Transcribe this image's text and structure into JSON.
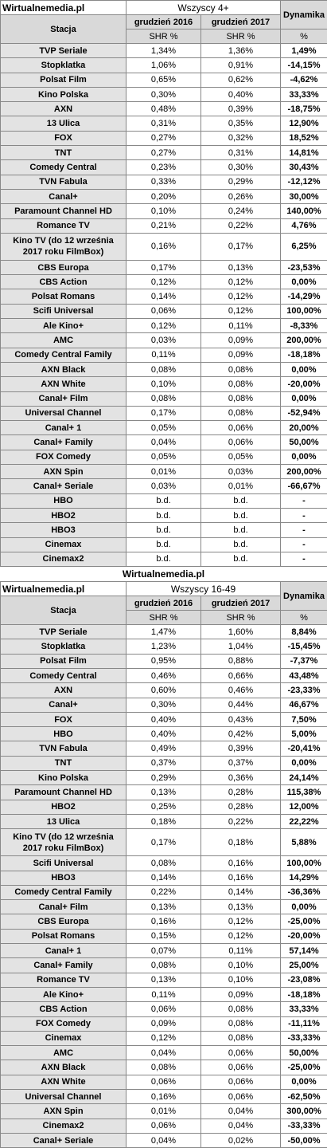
{
  "section1": {
    "site": "Wirtualnemedia.pl",
    "group": "Wszyscy 4+",
    "dynamics_label": "Dynamika",
    "station_label": "Stacja",
    "month1": "grudzień 2016",
    "month2": "grudzień 2017",
    "unit1": "SHR %",
    "unit2": "SHR %",
    "unit3": "%",
    "rows": [
      {
        "station": "TVP Seriale",
        "v2016": "1,34%",
        "v2017": "1,36%",
        "dyn": "1,49%"
      },
      {
        "station": "Stopklatka",
        "v2016": "1,06%",
        "v2017": "0,91%",
        "dyn": "-14,15%"
      },
      {
        "station": "Polsat Film",
        "v2016": "0,65%",
        "v2017": "0,62%",
        "dyn": "-4,62%"
      },
      {
        "station": "Kino Polska",
        "v2016": "0,30%",
        "v2017": "0,40%",
        "dyn": "33,33%"
      },
      {
        "station": "AXN",
        "v2016": "0,48%",
        "v2017": "0,39%",
        "dyn": "-18,75%"
      },
      {
        "station": "13 Ulica",
        "v2016": "0,31%",
        "v2017": "0,35%",
        "dyn": "12,90%"
      },
      {
        "station": "FOX",
        "v2016": "0,27%",
        "v2017": "0,32%",
        "dyn": "18,52%"
      },
      {
        "station": "TNT",
        "v2016": "0,27%",
        "v2017": "0,31%",
        "dyn": "14,81%"
      },
      {
        "station": "Comedy Central",
        "v2016": "0,23%",
        "v2017": "0,30%",
        "dyn": "30,43%"
      },
      {
        "station": "TVN Fabula",
        "v2016": "0,33%",
        "v2017": "0,29%",
        "dyn": "-12,12%"
      },
      {
        "station": "Canal+",
        "v2016": "0,20%",
        "v2017": "0,26%",
        "dyn": "30,00%"
      },
      {
        "station": "Paramount Channel HD",
        "v2016": "0,10%",
        "v2017": "0,24%",
        "dyn": "140,00%"
      },
      {
        "station": "Romance TV",
        "v2016": "0,21%",
        "v2017": "0,22%",
        "dyn": "4,76%"
      },
      {
        "station": "Kino TV (do 12 września 2017 roku FilmBox)",
        "v2016": "0,16%",
        "v2017": "0,17%",
        "dyn": "6,25%",
        "tall": true
      },
      {
        "station": "CBS Europa",
        "v2016": "0,17%",
        "v2017": "0,13%",
        "dyn": "-23,53%"
      },
      {
        "station": "CBS Action",
        "v2016": "0,12%",
        "v2017": "0,12%",
        "dyn": "0,00%"
      },
      {
        "station": "Polsat Romans",
        "v2016": "0,14%",
        "v2017": "0,12%",
        "dyn": "-14,29%"
      },
      {
        "station": "Scifi Universal",
        "v2016": "0,06%",
        "v2017": "0,12%",
        "dyn": "100,00%"
      },
      {
        "station": "Ale Kino+",
        "v2016": "0,12%",
        "v2017": "0,11%",
        "dyn": "-8,33%"
      },
      {
        "station": "AMC",
        "v2016": "0,03%",
        "v2017": "0,09%",
        "dyn": "200,00%"
      },
      {
        "station": "Comedy Central Family",
        "v2016": "0,11%",
        "v2017": "0,09%",
        "dyn": "-18,18%"
      },
      {
        "station": "AXN Black",
        "v2016": "0,08%",
        "v2017": "0,08%",
        "dyn": "0,00%"
      },
      {
        "station": "AXN White",
        "v2016": "0,10%",
        "v2017": "0,08%",
        "dyn": "-20,00%"
      },
      {
        "station": "Canal+ Film",
        "v2016": "0,08%",
        "v2017": "0,08%",
        "dyn": "0,00%"
      },
      {
        "station": "Universal Channel",
        "v2016": "0,17%",
        "v2017": "0,08%",
        "dyn": "-52,94%"
      },
      {
        "station": "Canal+ 1",
        "v2016": "0,05%",
        "v2017": "0,06%",
        "dyn": "20,00%"
      },
      {
        "station": "Canal+ Family",
        "v2016": "0,04%",
        "v2017": "0,06%",
        "dyn": "50,00%"
      },
      {
        "station": "FOX Comedy",
        "v2016": "0,05%",
        "v2017": "0,05%",
        "dyn": "0,00%"
      },
      {
        "station": "AXN Spin",
        "v2016": "0,01%",
        "v2017": "0,03%",
        "dyn": "200,00%"
      },
      {
        "station": "Canal+ Seriale",
        "v2016": "0,03%",
        "v2017": "0,01%",
        "dyn": "-66,67%"
      },
      {
        "station": "HBO",
        "v2016": "b.d.",
        "v2017": "b.d.",
        "dyn": "-"
      },
      {
        "station": "HBO2",
        "v2016": "b.d.",
        "v2017": "b.d.",
        "dyn": "-"
      },
      {
        "station": "HBO3",
        "v2016": "b.d.",
        "v2017": "b.d.",
        "dyn": "-"
      },
      {
        "station": "Cinemax",
        "v2016": "b.d.",
        "v2017": "b.d.",
        "dyn": "-"
      },
      {
        "station": "Cinemax2",
        "v2016": "b.d.",
        "v2017": "b.d.",
        "dyn": "-"
      }
    ]
  },
  "divider": "Wirtualnemedia.pl",
  "section2": {
    "site": "Wirtualnemedia.pl",
    "group": "Wszyscy 16-49",
    "dynamics_label": "Dynamika",
    "station_label": "Stacja",
    "month1": "grudzień 2016",
    "month2": "grudzień 2017",
    "unit1": "SHR %",
    "unit2": "SHR %",
    "unit3": "%",
    "rows": [
      {
        "station": "TVP Seriale",
        "v2016": "1,47%",
        "v2017": "1,60%",
        "dyn": "8,84%"
      },
      {
        "station": "Stopklatka",
        "v2016": "1,23%",
        "v2017": "1,04%",
        "dyn": "-15,45%"
      },
      {
        "station": "Polsat Film",
        "v2016": "0,95%",
        "v2017": "0,88%",
        "dyn": "-7,37%"
      },
      {
        "station": "Comedy Central",
        "v2016": "0,46%",
        "v2017": "0,66%",
        "dyn": "43,48%"
      },
      {
        "station": "AXN",
        "v2016": "0,60%",
        "v2017": "0,46%",
        "dyn": "-23,33%"
      },
      {
        "station": "Canal+",
        "v2016": "0,30%",
        "v2017": "0,44%",
        "dyn": "46,67%"
      },
      {
        "station": "FOX",
        "v2016": "0,40%",
        "v2017": "0,43%",
        "dyn": "7,50%"
      },
      {
        "station": "HBO",
        "v2016": "0,40%",
        "v2017": "0,42%",
        "dyn": "5,00%"
      },
      {
        "station": "TVN Fabula",
        "v2016": "0,49%",
        "v2017": "0,39%",
        "dyn": "-20,41%"
      },
      {
        "station": "TNT",
        "v2016": "0,37%",
        "v2017": "0,37%",
        "dyn": "0,00%"
      },
      {
        "station": "Kino Polska",
        "v2016": "0,29%",
        "v2017": "0,36%",
        "dyn": "24,14%"
      },
      {
        "station": "Paramount Channel HD",
        "v2016": "0,13%",
        "v2017": "0,28%",
        "dyn": "115,38%"
      },
      {
        "station": "HBO2",
        "v2016": "0,25%",
        "v2017": "0,28%",
        "dyn": "12,00%"
      },
      {
        "station": "13 Ulica",
        "v2016": "0,18%",
        "v2017": "0,22%",
        "dyn": "22,22%"
      },
      {
        "station": "Kino TV (do 12 września 2017 roku FilmBox)",
        "v2016": "0,17%",
        "v2017": "0,18%",
        "dyn": "5,88%",
        "tall": true
      },
      {
        "station": "Scifi Universal",
        "v2016": "0,08%",
        "v2017": "0,16%",
        "dyn": "100,00%"
      },
      {
        "station": "HBO3",
        "v2016": "0,14%",
        "v2017": "0,16%",
        "dyn": "14,29%"
      },
      {
        "station": "Comedy Central Family",
        "v2016": "0,22%",
        "v2017": "0,14%",
        "dyn": "-36,36%"
      },
      {
        "station": "Canal+ Film",
        "v2016": "0,13%",
        "v2017": "0,13%",
        "dyn": "0,00%"
      },
      {
        "station": "CBS Europa",
        "v2016": "0,16%",
        "v2017": "0,12%",
        "dyn": "-25,00%"
      },
      {
        "station": "Polsat Romans",
        "v2016": "0,15%",
        "v2017": "0,12%",
        "dyn": "-20,00%"
      },
      {
        "station": "Canal+ 1",
        "v2016": "0,07%",
        "v2017": "0,11%",
        "dyn": "57,14%"
      },
      {
        "station": "Canal+ Family",
        "v2016": "0,08%",
        "v2017": "0,10%",
        "dyn": "25,00%"
      },
      {
        "station": "Romance TV",
        "v2016": "0,13%",
        "v2017": "0,10%",
        "dyn": "-23,08%"
      },
      {
        "station": "Ale Kino+",
        "v2016": "0,11%",
        "v2017": "0,09%",
        "dyn": "-18,18%"
      },
      {
        "station": "CBS Action",
        "v2016": "0,06%",
        "v2017": "0,08%",
        "dyn": "33,33%"
      },
      {
        "station": "FOX Comedy",
        "v2016": "0,09%",
        "v2017": "0,08%",
        "dyn": "-11,11%"
      },
      {
        "station": "Cinemax",
        "v2016": "0,12%",
        "v2017": "0,08%",
        "dyn": "-33,33%"
      },
      {
        "station": "AMC",
        "v2016": "0,04%",
        "v2017": "0,06%",
        "dyn": "50,00%"
      },
      {
        "station": "AXN Black",
        "v2016": "0,08%",
        "v2017": "0,06%",
        "dyn": "-25,00%"
      },
      {
        "station": "AXN White",
        "v2016": "0,06%",
        "v2017": "0,06%",
        "dyn": "0,00%"
      },
      {
        "station": "Universal Channel",
        "v2016": "0,16%",
        "v2017": "0,06%",
        "dyn": "-62,50%"
      },
      {
        "station": "AXN Spin",
        "v2016": "0,01%",
        "v2017": "0,04%",
        "dyn": "300,00%"
      },
      {
        "station": "Cinemax2",
        "v2016": "0,06%",
        "v2017": "0,04%",
        "dyn": "-33,33%"
      },
      {
        "station": "Canal+ Seriale",
        "v2016": "0,04%",
        "v2017": "0,02%",
        "dyn": "-50,00%"
      }
    ]
  }
}
